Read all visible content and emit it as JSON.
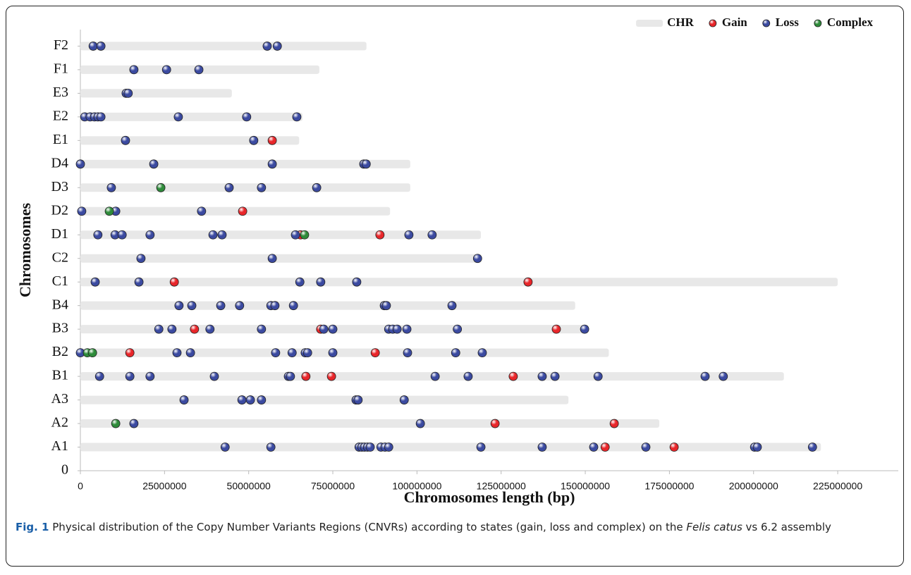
{
  "chart_data": {
    "type": "scatter",
    "xlabel": "Chromosomes length (bp)",
    "ylabel": "Chromosomes",
    "xlim": [
      0,
      243000000
    ],
    "xticks": [
      0,
      25000000,
      50000000,
      75000000,
      100000000,
      125000000,
      150000000,
      175000000,
      200000000,
      225000000
    ],
    "ylim": [
      0,
      18.7
    ],
    "yticks": [
      0,
      {
        "value": 1,
        "label": "A1"
      },
      {
        "value": 2,
        "label": "A2"
      },
      {
        "value": 3,
        "label": "A3"
      },
      {
        "value": 4,
        "label": "B1"
      },
      {
        "value": 5,
        "label": "B2"
      },
      {
        "value": 6,
        "label": "B3"
      },
      {
        "value": 7,
        "label": "B4"
      },
      {
        "value": 8,
        "label": "C1"
      },
      {
        "value": 9,
        "label": "C2"
      },
      {
        "value": 10,
        "label": "D1"
      },
      {
        "value": 11,
        "label": "D2"
      },
      {
        "value": 12,
        "label": "D3"
      },
      {
        "value": 13,
        "label": "D4"
      },
      {
        "value": 14,
        "label": "E1"
      },
      {
        "value": 15,
        "label": "E2"
      },
      {
        "value": 16,
        "label": "E3"
      },
      {
        "value": 17,
        "label": "F1"
      },
      {
        "value": 18,
        "label": "F2"
      }
    ],
    "legend": "top-right",
    "series": [
      {
        "name": "CHR",
        "color": "#e8e8e8",
        "values": [
          220000000,
          172000000,
          145000000,
          209000000,
          157000000,
          151000000,
          147000000,
          225000000,
          119000000,
          119000000,
          92000000,
          98000000,
          98000000,
          65000000,
          66000000,
          45000000,
          71000000,
          85000000
        ]
      },
      {
        "name": "Gain",
        "color": "#e8262a",
        "x": [
          155900000,
          176400000,
          123200000,
          158600000,
          67000000,
          74600000,
          128600000,
          14700000,
          87600000,
          33900000,
          71400000,
          141400000,
          27900000,
          133000000,
          65400000,
          89000000,
          48200000,
          57000000
        ],
        "values": [
          1,
          1,
          2,
          2,
          4,
          4,
          4,
          5,
          5,
          6,
          6,
          6,
          8,
          8,
          10,
          10,
          11,
          14
        ]
      },
      {
        "name": "Loss",
        "color": "#3b4aa0",
        "x": [
          43000000,
          56600000,
          82800000,
          83600000,
          84400000,
          85300000,
          86100000,
          89300000,
          90500000,
          91600000,
          119000000,
          137200000,
          152500000,
          168000000,
          200300000,
          201100000,
          217500000,
          15900000,
          101000000,
          30800000,
          48000000,
          50500000,
          53800000,
          81900000,
          82500000,
          96200000,
          5700000,
          14700000,
          20700000,
          39800000,
          61800000,
          62400000,
          105400000,
          115200000,
          137200000,
          141000000,
          153800000,
          185600000,
          191000000,
          0,
          28700000,
          32700000,
          58000000,
          62900000,
          66800000,
          67500000,
          75000000,
          97200000,
          111500000,
          119400000,
          23300000,
          27200000,
          38500000,
          53800000,
          72300000,
          75000000,
          91600000,
          92800000,
          94100000,
          97000000,
          112000000,
          149800000,
          29300000,
          33100000,
          41700000,
          47300000,
          56600000,
          57800000,
          63300000,
          90300000,
          90900000,
          110400000,
          4400000,
          17400000,
          65200000,
          71400000,
          82100000,
          18000000,
          57000000,
          118000000,
          5200000,
          10300000,
          12400000,
          20700000,
          39400000,
          42100000,
          63900000,
          97600000,
          104500000,
          400000,
          10500000,
          36000000,
          9200000,
          44200000,
          53800000,
          70200000,
          0,
          21800000,
          57000000,
          84200000,
          84900000,
          13400000,
          51500000,
          1300000,
          2900000,
          4200000,
          5200000,
          6100000,
          29100000,
          49400000,
          64300000,
          13600000,
          14200000,
          15900000,
          25600000,
          35200000,
          3800000,
          6100000,
          55500000,
          58500000
        ],
        "values": [
          1,
          1,
          1,
          1,
          1,
          1,
          1,
          1,
          1,
          1,
          1,
          1,
          1,
          1,
          1,
          1,
          1,
          2,
          2,
          3,
          3,
          3,
          3,
          3,
          3,
          3,
          4,
          4,
          4,
          4,
          4,
          4,
          4,
          4,
          4,
          4,
          4,
          4,
          4,
          5,
          5,
          5,
          5,
          5,
          5,
          5,
          5,
          5,
          5,
          5,
          6,
          6,
          6,
          6,
          6,
          6,
          6,
          6,
          6,
          6,
          6,
          6,
          7,
          7,
          7,
          7,
          7,
          7,
          7,
          7,
          7,
          7,
          8,
          8,
          8,
          8,
          8,
          9,
          9,
          9,
          10,
          10,
          10,
          10,
          10,
          10,
          10,
          10,
          10,
          11,
          11,
          11,
          12,
          12,
          12,
          12,
          13,
          13,
          13,
          13,
          13,
          14,
          14,
          15,
          15,
          15,
          15,
          15,
          15,
          15,
          15,
          16,
          16,
          17,
          17,
          17,
          18,
          18,
          18,
          18
        ]
      },
      {
        "name": "Complex",
        "color": "#2e8b3a",
        "x": [
          10500000,
          2100000,
          3600000,
          66600000,
          8600000,
          23900000
        ],
        "values": [
          2,
          5,
          5,
          10,
          11,
          12
        ]
      }
    ]
  },
  "caption": {
    "label": "Fig. 1",
    "text_before": "Physical distribution of the Copy Number Variants Regions (CNVRs) according to states (gain, loss and complex) on the",
    "italic": "Felis catus",
    "text_after": "vs 6.2 assembly"
  }
}
